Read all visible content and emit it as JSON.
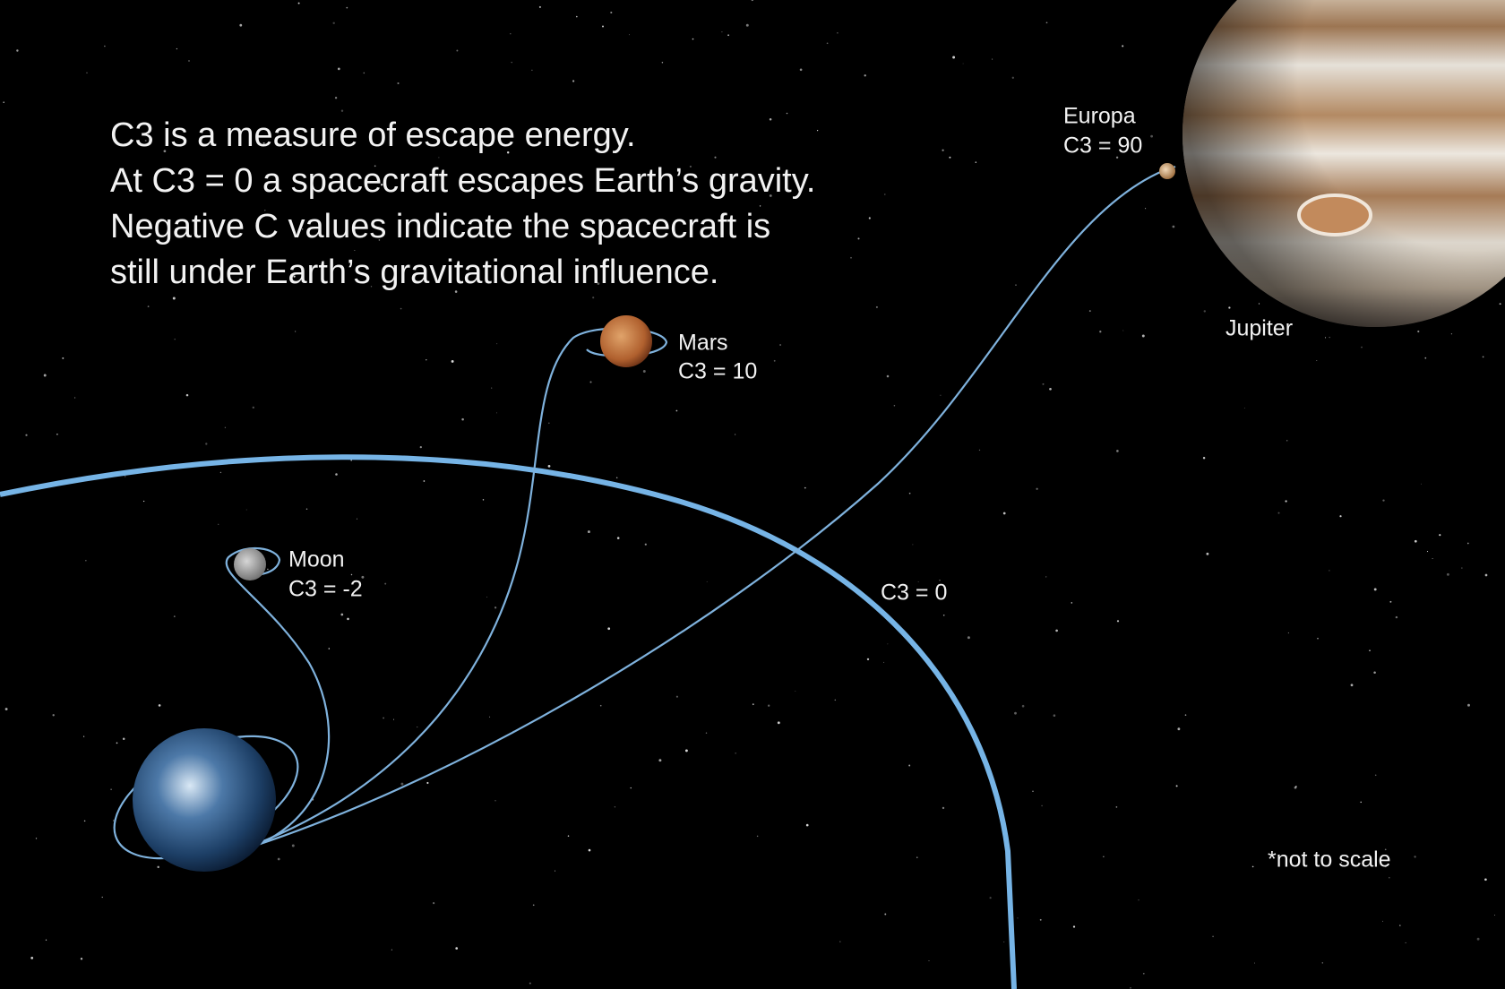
{
  "intro": {
    "lines": [
      "C3 is a measure of escape energy.",
      "At C3 = 0 a spacecraft escapes Earth’s gravity.",
      "Negative C values indicate the spacecraft is",
      "still under Earth’s gravitational influence."
    ]
  },
  "targets": [
    {
      "name": "Moon",
      "c3": "C3 = -2"
    },
    {
      "name": "Mars",
      "c3": "C3 = 10"
    },
    {
      "name": "Europa",
      "c3": "C3 = 90"
    }
  ],
  "jupiter_label": "Jupiter",
  "escape_label": "C3 = 0",
  "note": "*not to scale"
}
